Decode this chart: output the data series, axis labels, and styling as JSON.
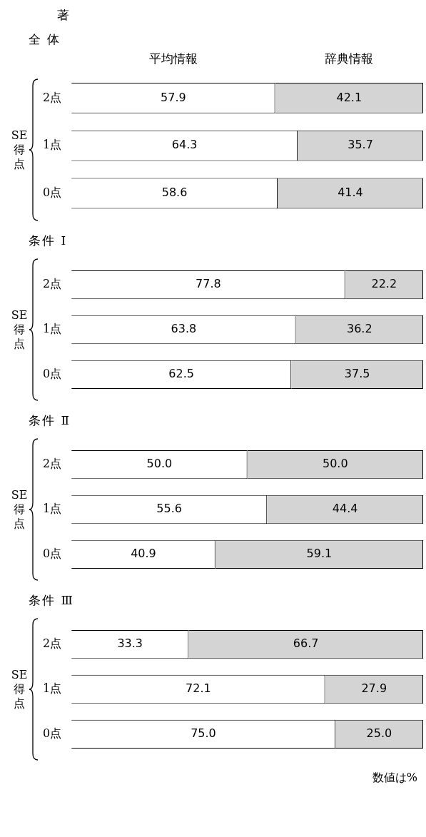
{
  "chart_data": [
    {
      "type": "bar",
      "title": "全 体",
      "ylabel": "SE得点",
      "orientation": "horizontal",
      "stacked": true,
      "legend": "top",
      "tick_labels": "y",
      "xlim": [
        0,
        100
      ],
      "annotations": [
        "著"
      ],
      "categories": [
        "2点",
        "1点",
        "0点"
      ],
      "series": [
        {
          "name": "平均情報",
          "color": "#ffffff",
          "values": [
            57.9,
            64.3,
            58.6
          ],
          "value_labels": [
            "57.9",
            "64.3",
            "58.6"
          ]
        },
        {
          "name": "辞典情報",
          "color": "#d4d4d4",
          "values": [
            42.1,
            35.7,
            41.4
          ],
          "value_labels": [
            "42.1",
            "35.7",
            "41.4"
          ]
        }
      ]
    },
    {
      "type": "bar",
      "title": "条件 I",
      "ylabel": "SE得点",
      "orientation": "horizontal",
      "stacked": true,
      "tick_labels": "y",
      "xlim": [
        0,
        100
      ],
      "categories": [
        "2点",
        "1点",
        "0点"
      ],
      "series": [
        {
          "color": "#ffffff",
          "values": [
            77.8,
            63.8,
            62.5
          ],
          "value_labels": [
            "77.8",
            "63.8",
            "62.5"
          ]
        },
        {
          "color": "#d4d4d4",
          "values": [
            22.2,
            36.2,
            37.5
          ],
          "value_labels": [
            "22.2",
            "36.2",
            "37.5"
          ]
        }
      ]
    },
    {
      "type": "bar",
      "title": "条件 Ⅱ",
      "ylabel": "SE得点",
      "orientation": "horizontal",
      "stacked": true,
      "tick_labels": "y",
      "xlim": [
        0,
        100
      ],
      "categories": [
        "2点",
        "1点",
        "0点"
      ],
      "series": [
        {
          "color": "#ffffff",
          "values": [
            50.0,
            55.6,
            40.9
          ],
          "value_labels": [
            "50.0",
            "55.6",
            "40.9"
          ]
        },
        {
          "color": "#d4d4d4",
          "values": [
            50.0,
            44.4,
            59.1
          ],
          "value_labels": [
            "50.0",
            "44.4",
            "59.1"
          ]
        }
      ]
    },
    {
      "type": "bar",
      "title": "条件 Ⅲ",
      "ylabel": "SE得点",
      "orientation": "horizontal",
      "stacked": true,
      "tick_labels": "y",
      "xlim": [
        0,
        100
      ],
      "annotations": [
        "数値は%"
      ],
      "categories": [
        "2点",
        "1点",
        "0点"
      ],
      "series": [
        {
          "color": "#ffffff",
          "values": [
            33.3,
            72.1,
            75.0
          ],
          "value_labels": [
            "33.3",
            "72.1",
            "75.0"
          ]
        },
        {
          "color": "#d4d4d4",
          "values": [
            66.7,
            27.9,
            25.0
          ],
          "value_labels": [
            "66.7",
            "27.9",
            "25.0"
          ]
        }
      ]
    }
  ]
}
